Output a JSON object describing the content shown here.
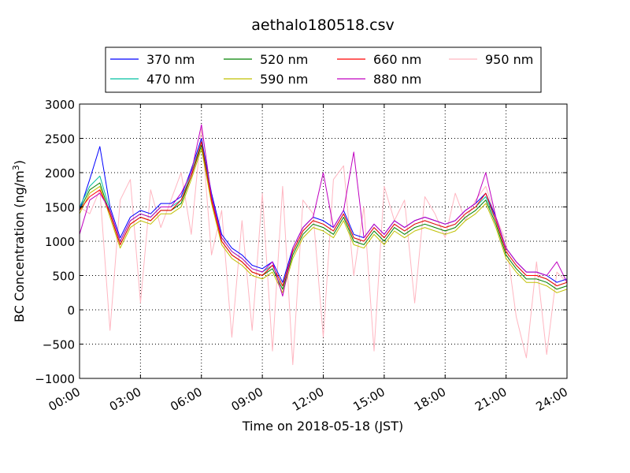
{
  "chart_data": {
    "type": "line",
    "title": "aethalo180518.csv",
    "xlabel": "Time on 2018-05-18 (JST)",
    "ylabel": "BC Concentration (ng/m",
    "ylabel_sup": "3",
    "ylabel_end": ")",
    "xlim": [
      0,
      24
    ],
    "ylim": [
      -1000,
      3000
    ],
    "grid": true,
    "legend_placement": "top-center",
    "x_ticks": [
      {
        "value": 0,
        "label": "00:00"
      },
      {
        "value": 3,
        "label": "03:00"
      },
      {
        "value": 6,
        "label": "06:00"
      },
      {
        "value": 9,
        "label": "09:00"
      },
      {
        "value": 12,
        "label": "12:00"
      },
      {
        "value": 15,
        "label": "15:00"
      },
      {
        "value": 18,
        "label": "18:00"
      },
      {
        "value": 21,
        "label": "21:00"
      },
      {
        "value": 24,
        "label": "24:00"
      }
    ],
    "y_ticks": [
      {
        "value": -1000,
        "label": "−1000"
      },
      {
        "value": -500,
        "label": "−500"
      },
      {
        "value": 0,
        "label": "0"
      },
      {
        "value": 500,
        "label": "500"
      },
      {
        "value": 1000,
        "label": "1000"
      },
      {
        "value": 1500,
        "label": "1500"
      },
      {
        "value": 2000,
        "label": "2000"
      },
      {
        "value": 2500,
        "label": "2500"
      },
      {
        "value": 3000,
        "label": "3000"
      }
    ],
    "x": [
      0,
      0.5,
      1,
      1.5,
      2,
      2.5,
      3,
      3.5,
      4,
      4.5,
      5,
      5.5,
      6,
      6.5,
      7,
      7.5,
      8,
      8.5,
      9,
      9.5,
      10,
      10.5,
      11,
      11.5,
      12,
      12.5,
      13,
      13.5,
      14,
      14.5,
      15,
      15.5,
      16,
      16.5,
      17,
      17.5,
      18,
      18.5,
      19,
      19.5,
      20,
      20.5,
      21,
      21.5,
      22,
      22.5,
      23,
      23.5,
      24
    ],
    "series": [
      {
        "name": "370 nm",
        "color": "#0000ff",
        "values": [
          1450,
          1900,
          2380,
          1500,
          1050,
          1350,
          1450,
          1400,
          1550,
          1550,
          1650,
          2050,
          2500,
          1700,
          1100,
          900,
          800,
          650,
          600,
          700,
          400,
          900,
          1200,
          1350,
          1300,
          1200,
          1450,
          1100,
          1050,
          1250,
          1100,
          1300,
          1200,
          1300,
          1350,
          1300,
          1250,
          1300,
          1450,
          1550,
          1700,
          1350,
          900,
          700,
          550,
          550,
          500,
          400,
          450
        ]
      },
      {
        "name": "470 nm",
        "color": "#00c0a0",
        "values": [
          1500,
          1800,
          1950,
          1450,
          1000,
          1300,
          1400,
          1350,
          1500,
          1500,
          1600,
          2000,
          2450,
          1650,
          1050,
          850,
          750,
          600,
          550,
          650,
          350,
          850,
          1150,
          1300,
          1250,
          1150,
          1400,
          1050,
          1000,
          1200,
          1050,
          1250,
          1150,
          1250,
          1300,
          1250,
          1200,
          1250,
          1400,
          1500,
          1650,
          1300,
          850,
          650,
          500,
          500,
          450,
          350,
          400
        ]
      },
      {
        "name": "520 nm",
        "color": "#008000",
        "values": [
          1450,
          1750,
          1850,
          1400,
          950,
          1250,
          1350,
          1300,
          1450,
          1450,
          1550,
          1950,
          2400,
          1600,
          1000,
          800,
          700,
          550,
          500,
          600,
          300,
          800,
          1100,
          1250,
          1200,
          1100,
          1350,
          1000,
          950,
          1150,
          1000,
          1200,
          1100,
          1200,
          1250,
          1200,
          1150,
          1200,
          1350,
          1450,
          1600,
          1250,
          800,
          600,
          450,
          450,
          400,
          300,
          350
        ]
      },
      {
        "name": "590 nm",
        "color": "#c0c000",
        "values": [
          1400,
          1700,
          1800,
          1350,
          900,
          1200,
          1300,
          1250,
          1400,
          1400,
          1500,
          1900,
          2350,
          1550,
          950,
          750,
          650,
          500,
          450,
          550,
          250,
          750,
          1050,
          1200,
          1150,
          1050,
          1300,
          950,
          900,
          1100,
          950,
          1150,
          1050,
          1150,
          1200,
          1150,
          1100,
          1150,
          1300,
          1400,
          1550,
          1200,
          750,
          550,
          400,
          400,
          350,
          250,
          300
        ]
      },
      {
        "name": "660 nm",
        "color": "#ff0000",
        "values": [
          1450,
          1650,
          1750,
          1400,
          950,
          1250,
          1350,
          1300,
          1450,
          1450,
          1600,
          1950,
          2450,
          1600,
          1000,
          800,
          700,
          550,
          500,
          650,
          350,
          850,
          1150,
          1300,
          1250,
          1150,
          1400,
          1050,
          1000,
          1200,
          1050,
          1250,
          1150,
          1250,
          1300,
          1250,
          1200,
          1250,
          1400,
          1500,
          1700,
          1300,
          850,
          650,
          500,
          500,
          450,
          350,
          400
        ]
      },
      {
        "name": "880 nm",
        "color": "#c000c0",
        "values": [
          1100,
          1600,
          1700,
          1450,
          1000,
          1300,
          1400,
          1350,
          1500,
          1500,
          1700,
          2000,
          2700,
          1650,
          1050,
          850,
          750,
          600,
          550,
          700,
          200,
          900,
          1200,
          1350,
          2000,
          1200,
          1450,
          2300,
          1050,
          1250,
          1100,
          1300,
          1200,
          1300,
          1350,
          1300,
          1250,
          1300,
          1450,
          1550,
          2000,
          1350,
          900,
          700,
          550,
          550,
          500,
          700,
          400
        ]
      },
      {
        "name": "950 nm",
        "color": "#ffb6c1",
        "values": [
          1500,
          1400,
          1750,
          -300,
          1600,
          1900,
          100,
          1750,
          1200,
          1600,
          2000,
          1100,
          2650,
          800,
          1450,
          -400,
          1300,
          -300,
          1700,
          -600,
          1800,
          -800,
          1600,
          1400,
          -400,
          1900,
          2100,
          500,
          1500,
          -600,
          1800,
          1300,
          1600,
          100,
          1650,
          1400,
          1050,
          1700,
          1300,
          1600,
          1800,
          1350,
          1000,
          -100,
          -700,
          700,
          -650,
          550,
          400
        ]
      }
    ]
  }
}
